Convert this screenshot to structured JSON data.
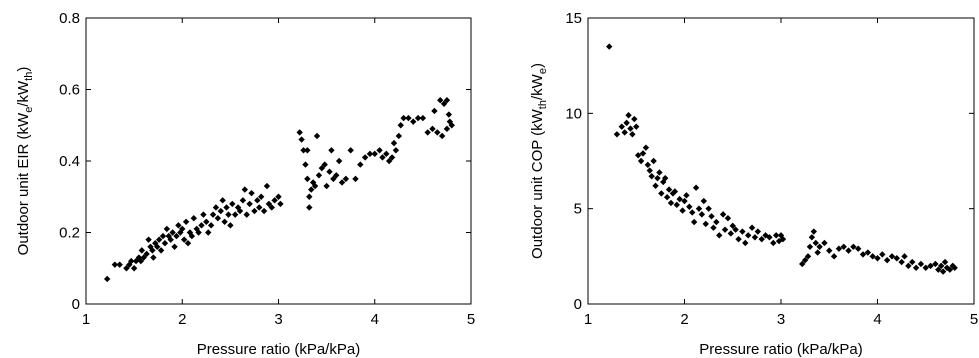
{
  "chart_data": [
    {
      "type": "scatter",
      "xlabel": "Pressure ratio (kPa/kPa)",
      "ylabel": "Outdoor unit EIR (kW",
      "ylabel_sub1": "e",
      "ylabel_mid": "/kW",
      "ylabel_sub2": "th",
      "ylabel_end": ")",
      "xlim": [
        1,
        5
      ],
      "ylim": [
        0,
        0.8
      ],
      "xticks": [
        "1",
        "2",
        "3",
        "4",
        "5"
      ],
      "yticks": [
        "0",
        "0.2",
        "0.4",
        "0.6",
        "0.8"
      ],
      "marker_color": "#000000",
      "grid": false,
      "points": [
        [
          1.22,
          0.07
        ],
        [
          1.3,
          0.11
        ],
        [
          1.35,
          0.11
        ],
        [
          1.42,
          0.1
        ],
        [
          1.45,
          0.11
        ],
        [
          1.47,
          0.12
        ],
        [
          1.5,
          0.1
        ],
        [
          1.52,
          0.12
        ],
        [
          1.55,
          0.13
        ],
        [
          1.57,
          0.12
        ],
        [
          1.58,
          0.15
        ],
        [
          1.6,
          0.13
        ],
        [
          1.63,
          0.14
        ],
        [
          1.65,
          0.18
        ],
        [
          1.67,
          0.16
        ],
        [
          1.69,
          0.15
        ],
        [
          1.7,
          0.13
        ],
        [
          1.72,
          0.17
        ],
        [
          1.74,
          0.16
        ],
        [
          1.76,
          0.18
        ],
        [
          1.78,
          0.15
        ],
        [
          1.8,
          0.19
        ],
        [
          1.82,
          0.17
        ],
        [
          1.84,
          0.21
        ],
        [
          1.86,
          0.19
        ],
        [
          1.88,
          0.18
        ],
        [
          1.9,
          0.2
        ],
        [
          1.92,
          0.16
        ],
        [
          1.94,
          0.19
        ],
        [
          1.96,
          0.22
        ],
        [
          1.98,
          0.2
        ],
        [
          2.0,
          0.21
        ],
        [
          2.02,
          0.18
        ],
        [
          2.04,
          0.23
        ],
        [
          2.06,
          0.17
        ],
        [
          2.08,
          0.2
        ],
        [
          2.1,
          0.19
        ],
        [
          2.12,
          0.24
        ],
        [
          2.15,
          0.21
        ],
        [
          2.17,
          0.2
        ],
        [
          2.2,
          0.22
        ],
        [
          2.22,
          0.25
        ],
        [
          2.25,
          0.23
        ],
        [
          2.27,
          0.2
        ],
        [
          2.3,
          0.22
        ],
        [
          2.32,
          0.25
        ],
        [
          2.35,
          0.27
        ],
        [
          2.37,
          0.24
        ],
        [
          2.4,
          0.26
        ],
        [
          2.42,
          0.29
        ],
        [
          2.44,
          0.23
        ],
        [
          2.46,
          0.27
        ],
        [
          2.48,
          0.25
        ],
        [
          2.5,
          0.22
        ],
        [
          2.52,
          0.28
        ],
        [
          2.55,
          0.25
        ],
        [
          2.58,
          0.27
        ],
        [
          2.6,
          0.26
        ],
        [
          2.63,
          0.29
        ],
        [
          2.65,
          0.32
        ],
        [
          2.67,
          0.25
        ],
        [
          2.7,
          0.28
        ],
        [
          2.72,
          0.31
        ],
        [
          2.75,
          0.26
        ],
        [
          2.78,
          0.29
        ],
        [
          2.8,
          0.27
        ],
        [
          2.82,
          0.3
        ],
        [
          2.85,
          0.26
        ],
        [
          2.88,
          0.33
        ],
        [
          2.9,
          0.28
        ],
        [
          2.93,
          0.27
        ],
        [
          2.96,
          0.29
        ],
        [
          3.0,
          0.3
        ],
        [
          3.02,
          0.28
        ],
        [
          3.22,
          0.48
        ],
        [
          3.24,
          0.46
        ],
        [
          3.26,
          0.43
        ],
        [
          3.28,
          0.39
        ],
        [
          3.3,
          0.43
        ],
        [
          3.3,
          0.35
        ],
        [
          3.32,
          0.3
        ],
        [
          3.32,
          0.27
        ],
        [
          3.34,
          0.32
        ],
        [
          3.36,
          0.34
        ],
        [
          3.38,
          0.33
        ],
        [
          3.4,
          0.47
        ],
        [
          3.42,
          0.36
        ],
        [
          3.45,
          0.38
        ],
        [
          3.48,
          0.39
        ],
        [
          3.5,
          0.33
        ],
        [
          3.53,
          0.37
        ],
        [
          3.55,
          0.43
        ],
        [
          3.57,
          0.35
        ],
        [
          3.6,
          0.36
        ],
        [
          3.63,
          0.4
        ],
        [
          3.66,
          0.34
        ],
        [
          3.7,
          0.35
        ],
        [
          3.75,
          0.43
        ],
        [
          3.8,
          0.35
        ],
        [
          3.85,
          0.39
        ],
        [
          3.9,
          0.41
        ],
        [
          3.95,
          0.42
        ],
        [
          4.0,
          0.42
        ],
        [
          4.05,
          0.43
        ],
        [
          4.08,
          0.41
        ],
        [
          4.12,
          0.42
        ],
        [
          4.15,
          0.4
        ],
        [
          4.18,
          0.41
        ],
        [
          4.2,
          0.45
        ],
        [
          4.22,
          0.43
        ],
        [
          4.25,
          0.47
        ],
        [
          4.27,
          0.5
        ],
        [
          4.3,
          0.52
        ],
        [
          4.35,
          0.52
        ],
        [
          4.4,
          0.51
        ],
        [
          4.45,
          0.52
        ],
        [
          4.5,
          0.52
        ],
        [
          4.55,
          0.48
        ],
        [
          4.6,
          0.49
        ],
        [
          4.62,
          0.54
        ],
        [
          4.65,
          0.48
        ],
        [
          4.68,
          0.57
        ],
        [
          4.7,
          0.47
        ],
        [
          4.72,
          0.56
        ],
        [
          4.75,
          0.49
        ],
        [
          4.77,
          0.53
        ],
        [
          4.78,
          0.51
        ],
        [
          4.8,
          0.5
        ],
        [
          4.75,
          0.57
        ]
      ]
    },
    {
      "type": "scatter",
      "xlabel": "Pressure ratio (kPa/kPa)",
      "ylabel": "Outdoor unit COP (kW",
      "ylabel_sub1": "th",
      "ylabel_mid": "/kW",
      "ylabel_sub2": "e",
      "ylabel_end": ")",
      "xlim": [
        1,
        5
      ],
      "ylim": [
        0,
        15
      ],
      "xticks": [
        "1",
        "2",
        "3",
        "4",
        "5"
      ],
      "yticks": [
        "0",
        "5",
        "10",
        "15"
      ],
      "marker_color": "#000000",
      "grid": false,
      "points": [
        [
          1.22,
          13.5
        ],
        [
          1.3,
          8.9
        ],
        [
          1.35,
          9.3
        ],
        [
          1.38,
          9.0
        ],
        [
          1.4,
          9.5
        ],
        [
          1.42,
          9.9
        ],
        [
          1.44,
          9.2
        ],
        [
          1.46,
          8.9
        ],
        [
          1.48,
          9.7
        ],
        [
          1.5,
          9.3
        ],
        [
          1.52,
          7.8
        ],
        [
          1.55,
          7.5
        ],
        [
          1.57,
          7.9
        ],
        [
          1.6,
          8.2
        ],
        [
          1.62,
          7.3
        ],
        [
          1.64,
          7.0
        ],
        [
          1.66,
          6.7
        ],
        [
          1.68,
          7.5
        ],
        [
          1.7,
          6.2
        ],
        [
          1.72,
          6.6
        ],
        [
          1.74,
          6.9
        ],
        [
          1.76,
          5.8
        ],
        [
          1.78,
          6.4
        ],
        [
          1.8,
          6.6
        ],
        [
          1.82,
          5.6
        ],
        [
          1.84,
          6.0
        ],
        [
          1.86,
          5.3
        ],
        [
          1.88,
          5.8
        ],
        [
          1.9,
          5.9
        ],
        [
          1.92,
          5.2
        ],
        [
          1.95,
          5.5
        ],
        [
          1.98,
          4.9
        ],
        [
          2.0,
          5.4
        ],
        [
          2.02,
          5.7
        ],
        [
          2.05,
          5.1
        ],
        [
          2.08,
          4.8
        ],
        [
          2.1,
          4.3
        ],
        [
          2.12,
          6.1
        ],
        [
          2.15,
          5.0
        ],
        [
          2.18,
          4.7
        ],
        [
          2.2,
          5.4
        ],
        [
          2.22,
          4.2
        ],
        [
          2.25,
          5.0
        ],
        [
          2.28,
          4.6
        ],
        [
          2.3,
          4.0
        ],
        [
          2.33,
          4.3
        ],
        [
          2.36,
          3.6
        ],
        [
          2.4,
          4.7
        ],
        [
          2.42,
          3.9
        ],
        [
          2.45,
          4.5
        ],
        [
          2.48,
          3.7
        ],
        [
          2.5,
          4.1
        ],
        [
          2.53,
          3.9
        ],
        [
          2.56,
          3.4
        ],
        [
          2.6,
          3.8
        ],
        [
          2.63,
          3.2
        ],
        [
          2.66,
          3.6
        ],
        [
          2.7,
          4.0
        ],
        [
          2.73,
          3.5
        ],
        [
          2.76,
          3.8
        ],
        [
          2.8,
          3.4
        ],
        [
          2.84,
          3.6
        ],
        [
          2.88,
          3.5
        ],
        [
          2.92,
          3.2
        ],
        [
          2.95,
          3.6
        ],
        [
          2.98,
          3.3
        ],
        [
          3.0,
          3.6
        ],
        [
          3.02,
          3.4
        ],
        [
          3.22,
          2.1
        ],
        [
          3.25,
          2.3
        ],
        [
          3.28,
          2.5
        ],
        [
          3.3,
          3.0
        ],
        [
          3.32,
          3.5
        ],
        [
          3.34,
          3.8
        ],
        [
          3.36,
          3.2
        ],
        [
          3.38,
          2.7
        ],
        [
          3.4,
          3.0
        ],
        [
          3.45,
          3.2
        ],
        [
          3.5,
          2.8
        ],
        [
          3.55,
          2.5
        ],
        [
          3.6,
          2.9
        ],
        [
          3.65,
          3.0
        ],
        [
          3.7,
          2.8
        ],
        [
          3.75,
          3.0
        ],
        [
          3.8,
          2.9
        ],
        [
          3.85,
          2.6
        ],
        [
          3.9,
          2.7
        ],
        [
          3.95,
          2.5
        ],
        [
          4.0,
          2.4
        ],
        [
          4.05,
          2.6
        ],
        [
          4.1,
          2.3
        ],
        [
          4.15,
          2.5
        ],
        [
          4.2,
          2.4
        ],
        [
          4.25,
          2.2
        ],
        [
          4.28,
          2.5
        ],
        [
          4.32,
          2.0
        ],
        [
          4.36,
          2.2
        ],
        [
          4.4,
          1.9
        ],
        [
          4.45,
          2.1
        ],
        [
          4.5,
          1.9
        ],
        [
          4.55,
          2.0
        ],
        [
          4.6,
          2.1
        ],
        [
          4.63,
          1.8
        ],
        [
          4.66,
          2.0
        ],
        [
          4.68,
          1.7
        ],
        [
          4.7,
          2.2
        ],
        [
          4.72,
          1.9
        ],
        [
          4.75,
          1.8
        ],
        [
          4.78,
          2.0
        ],
        [
          4.8,
          1.9
        ]
      ]
    }
  ]
}
